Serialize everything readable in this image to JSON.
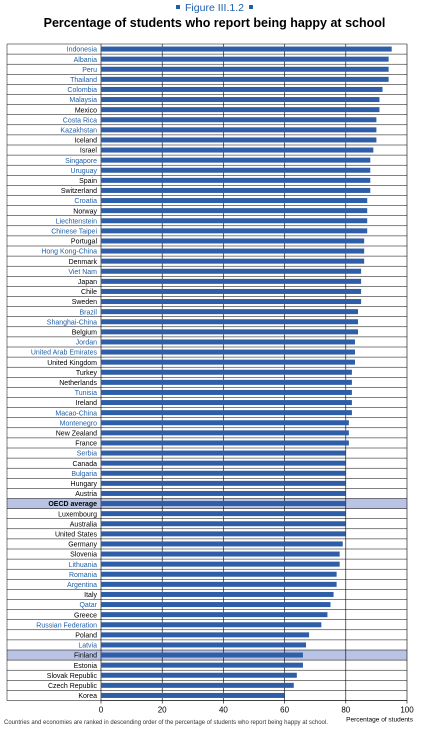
{
  "figure_label": "Figure III.1.2",
  "chart_data": {
    "type": "bar",
    "orientation": "horizontal",
    "title": "Percentage of students who report being happy at school",
    "xlabel": "Percentage of students",
    "ylabel": "",
    "xlim": [
      0,
      100
    ],
    "xticks": [
      0,
      20,
      40,
      60,
      80,
      100
    ],
    "grid": true,
    "bar_color": "#2f5ea8",
    "categories": [
      "Indonesia",
      "Albania",
      "Peru",
      "Thailand",
      "Colombia",
      "Malaysia",
      "Mexico",
      "Costa Rica",
      "Kazakhstan",
      "Iceland",
      "Israel",
      "Singapore",
      "Uruguay",
      "Spain",
      "Switzerland",
      "Croatia",
      "Norway",
      "Liechtenstein",
      "Chinese Taipei",
      "Portugal",
      "Hong Kong-China",
      "Denmark",
      "Viet Nam",
      "Japan",
      "Chile",
      "Sweden",
      "Brazil",
      "Shanghai-China",
      "Belgium",
      "Jordan",
      "United Arab Emirates",
      "United Kingdom",
      "Turkey",
      "Netherlands",
      "Tunisia",
      "Ireland",
      "Macao-China",
      "Montenegro",
      "New Zealand",
      "France",
      "Serbia",
      "Canada",
      "Bulgaria",
      "Hungary",
      "Austria",
      "OECD average",
      "Luxembourg",
      "Australia",
      "United States",
      "Germany",
      "Slovenia",
      "Lithuania",
      "Romania",
      "Argentina",
      "Italy",
      "Qatar",
      "Greece",
      "Russian Federation",
      "Poland",
      "Latvia",
      "Finland",
      "Estonia",
      "Slovak Republic",
      "Czech Republic",
      "Korea"
    ],
    "values": [
      95,
      94,
      94,
      94,
      92,
      91,
      91,
      90,
      90,
      90,
      89,
      88,
      88,
      88,
      88,
      87,
      87,
      87,
      87,
      86,
      86,
      86,
      85,
      85,
      85,
      85,
      84,
      84,
      84,
      83,
      83,
      83,
      82,
      82,
      82,
      82,
      82,
      81,
      81,
      81,
      80,
      80,
      80,
      80,
      80,
      80,
      80,
      80,
      80,
      79,
      78,
      78,
      77,
      77,
      76,
      75,
      74,
      72,
      68,
      67,
      66,
      66,
      64,
      63,
      60
    ],
    "blue_label_categories": [
      "Indonesia",
      "Albania",
      "Peru",
      "Thailand",
      "Colombia",
      "Malaysia",
      "Costa Rica",
      "Kazakhstan",
      "Singapore",
      "Uruguay",
      "Croatia",
      "Liechtenstein",
      "Chinese Taipei",
      "Hong Kong-China",
      "Viet Nam",
      "Brazil",
      "Shanghai-China",
      "Jordan",
      "United Arab Emirates",
      "Tunisia",
      "Macao-China",
      "Montenegro",
      "Serbia",
      "Bulgaria",
      "Lithuania",
      "Romania",
      "Argentina",
      "Qatar",
      "Russian Federation",
      "Latvia"
    ],
    "highlighted_categories": [
      "OECD average",
      "Finland"
    ]
  },
  "colors": {
    "accent": "#1f5fa8",
    "highlight": "#b9c4e4",
    "grid": "#000000"
  },
  "footer_fragment": "Countries and economies are ranked in descending order of the percentage of students who report being happy at school."
}
